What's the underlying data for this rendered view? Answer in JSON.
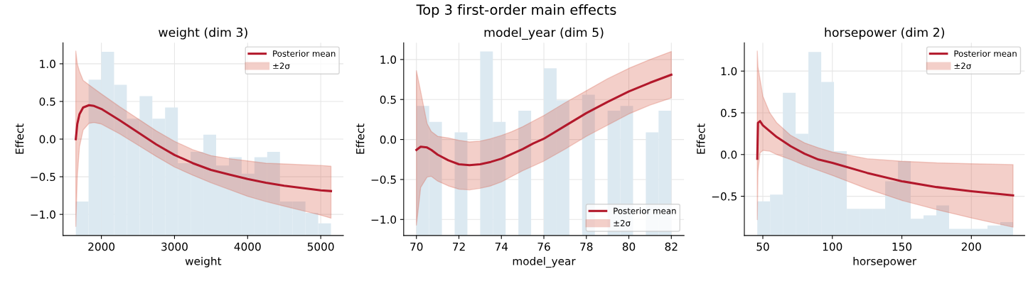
{
  "chart_data": [
    {
      "type": "line",
      "title": "weight (dim 3)",
      "xlabel": "weight",
      "ylabel": "Effect",
      "annotations": [
        "±2σ",
        "Top 3 first-order main effects"
      ],
      "xlim": [
        1475,
        5310
      ],
      "ylim": [
        -1.28,
        1.28
      ],
      "xticks": [
        2000,
        3000,
        4000,
        5000
      ],
      "yticks": [
        {
          "value": -1.0,
          "label": "−1.0"
        },
        {
          "value": -0.5,
          "label": "−0.5"
        },
        {
          "value": 0.0,
          "label": "0.0"
        },
        {
          "value": 0.5,
          "label": "0.5"
        },
        {
          "value": 1.0,
          "label": "1.0"
        }
      ],
      "grid": true,
      "legend": "top right",
      "series": [
        {
          "type": "bar",
          "color": "#dce9f1",
          "x": [
            1737.25,
            1911.75,
            2086.25,
            2260.75,
            2435.25,
            2609.75,
            2784.25,
            2958.75,
            3133.25,
            3307.75,
            3482.25,
            3656.75,
            3831.25,
            4005.75,
            4180.25,
            4354.75,
            4529.25,
            4703.75,
            4878.25,
            5052.75
          ],
          "base": [
            -1.28,
            -1.28,
            -1.28,
            -1.28,
            -1.28,
            -1.28,
            -1.28,
            -1.28,
            -1.28,
            -1.28,
            -1.28,
            -1.28,
            -1.28,
            -1.28,
            -1.28,
            -1.28,
            -1.28,
            -1.28,
            -1.28,
            -1.28
          ],
          "values": [
            0.45,
            2.07,
            2.44,
            2.0,
            1.55,
            1.85,
            1.55,
            1.7,
            0.96,
            1.11,
            1.34,
            0.93,
            1.04,
            0.82,
            1.04,
            1.11,
            0.45,
            0.45,
            0.3,
            0.16
          ]
        },
        {
          "name": "Posterior mean",
          "color": "#b2182b",
          "x": [
            1650,
            1670,
            1700,
            1750,
            1830,
            1900,
            2000,
            2250,
            2500,
            2750,
            3000,
            3250,
            3500,
            3750,
            4000,
            4250,
            4500,
            4750,
            5000,
            5140
          ],
          "values": [
            0.0,
            0.2,
            0.33,
            0.42,
            0.45,
            0.44,
            0.4,
            0.25,
            0.09,
            -0.07,
            -0.21,
            -0.32,
            -0.41,
            -0.47,
            -0.53,
            -0.58,
            -0.62,
            -0.65,
            -0.68,
            -0.69
          ],
          "lower": [
            -1.16,
            -0.5,
            -0.1,
            0.12,
            0.21,
            0.22,
            0.2,
            0.07,
            -0.08,
            -0.23,
            -0.37,
            -0.48,
            -0.58,
            -0.67,
            -0.76,
            -0.83,
            -0.89,
            -0.95,
            -1.01,
            -1.05
          ],
          "upper": [
            1.17,
            1.0,
            0.9,
            0.78,
            0.72,
            0.67,
            0.6,
            0.43,
            0.27,
            0.11,
            -0.03,
            -0.14,
            -0.22,
            -0.26,
            -0.29,
            -0.32,
            -0.33,
            -0.34,
            -0.35,
            -0.36
          ]
        }
      ]
    },
    {
      "type": "line",
      "title": "model_year (dim 5)",
      "xlabel": "model_year",
      "ylabel": "Effect",
      "annotations": [
        "±2σ"
      ],
      "xlim": [
        69.4,
        82.6
      ],
      "ylim": [
        -1.2,
        1.21
      ],
      "xticks": [
        70,
        72,
        74,
        76,
        78,
        80,
        82
      ],
      "yticks": [
        {
          "value": -1.0,
          "label": "−1.0"
        },
        {
          "value": -0.5,
          "label": "−0.5"
        },
        {
          "value": 0.0,
          "label": "0.0"
        },
        {
          "value": 0.5,
          "label": "0.5"
        },
        {
          "value": 1.0,
          "label": "1.0"
        }
      ],
      "grid": true,
      "legend": "bottom right",
      "series": [
        {
          "type": "bar",
          "color": "#dce9f1",
          "x": [
            70.3,
            70.9,
            71.5,
            72.1,
            72.7,
            73.3,
            73.9,
            74.5,
            75.1,
            75.7,
            76.3,
            76.9,
            77.5,
            78.1,
            78.7,
            79.3,
            79.9,
            80.5,
            81.1,
            81.7
          ],
          "base": [
            -1.2,
            -1.2,
            null,
            -1.2,
            null,
            -1.2,
            -1.2,
            null,
            -1.2,
            null,
            -1.2,
            -1.2,
            null,
            -1.2,
            null,
            -1.2,
            -1.2,
            null,
            -1.2,
            -1.2
          ],
          "values": [
            1.62,
            1.42,
            null,
            1.29,
            null,
            2.3,
            1.42,
            null,
            1.56,
            null,
            2.09,
            1.69,
            null,
            1.76,
            null,
            1.56,
            1.62,
            null,
            1.29,
            1.56
          ]
        },
        {
          "name": "Posterior mean",
          "color": "#b2182b",
          "x": [
            70,
            70.2,
            70.5,
            70.7,
            71,
            71.5,
            72,
            72.5,
            73,
            73.5,
            74,
            74.5,
            75,
            75.5,
            76,
            77,
            78,
            79,
            80,
            81,
            82
          ],
          "values": [
            -0.13,
            -0.09,
            -0.1,
            -0.13,
            -0.19,
            -0.26,
            -0.31,
            -0.32,
            -0.31,
            -0.28,
            -0.24,
            -0.18,
            -0.12,
            -0.05,
            0.01,
            0.17,
            0.33,
            0.47,
            0.6,
            0.71,
            0.81
          ],
          "lower": [
            -1.07,
            -0.6,
            -0.47,
            -0.46,
            -0.52,
            -0.58,
            -0.62,
            -0.63,
            -0.61,
            -0.58,
            -0.53,
            -0.46,
            -0.39,
            -0.33,
            -0.27,
            -0.12,
            0.04,
            0.18,
            0.32,
            0.43,
            0.52
          ],
          "upper": [
            0.86,
            0.6,
            0.2,
            0.1,
            0.04,
            0.02,
            -0.01,
            -0.03,
            -0.02,
            0.01,
            0.05,
            0.1,
            0.16,
            0.23,
            0.3,
            0.46,
            0.61,
            0.76,
            0.89,
            1.0,
            1.1
          ]
        }
      ]
    },
    {
      "type": "line",
      "title": "horsepower (dim 2)",
      "xlabel": "horsepower",
      "ylabel": "Effect",
      "annotations": [
        "±2σ"
      ],
      "xlim": [
        36.7,
        238.4
      ],
      "ylim": [
        -0.97,
        1.34
      ],
      "xticks": [
        50,
        100,
        150,
        200
      ],
      "yticks": [
        {
          "value": -0.5,
          "label": "−0.5"
        },
        {
          "value": 0.0,
          "label": "0.0"
        },
        {
          "value": 0.5,
          "label": "0.5"
        },
        {
          "value": 1.0,
          "label": "1.0"
        }
      ],
      "grid": true,
      "legend": "top right",
      "series": [
        {
          "type": "bar",
          "color": "#dce9f1",
          "x": [
            50.6,
            59.8,
            69.0,
            78.2,
            87.4,
            96.6,
            105.8,
            115.0,
            124.2,
            133.4,
            142.6,
            151.8,
            161.0,
            170.2,
            179.4,
            188.6,
            197.8,
            207.0,
            216.2,
            225.4
          ],
          "base": [
            -0.97,
            -0.97,
            -0.97,
            -0.97,
            -0.97,
            -0.97,
            -0.97,
            -0.97,
            -0.97,
            -0.97,
            -0.97,
            -0.97,
            -0.97,
            -0.97,
            -0.97,
            -0.97,
            -0.97,
            -0.97,
            -0.97,
            -0.97
          ],
          "values": [
            0.41,
            0.49,
            1.71,
            1.22,
            2.2,
            1.84,
            1.01,
            0.32,
            0.32,
            0.32,
            0.65,
            0.89,
            0.2,
            0.24,
            0.36,
            0.08,
            0.08,
            0.08,
            0.12,
            0.16
          ]
        },
        {
          "name": "Posterior mean",
          "color": "#b2182b",
          "x": [
            46,
            46.5,
            48,
            50,
            55,
            60,
            70,
            80,
            90,
            100,
            125,
            150,
            175,
            200,
            230
          ],
          "values": [
            -0.05,
            0.38,
            0.4,
            0.35,
            0.28,
            0.21,
            0.1,
            0.01,
            -0.06,
            -0.1,
            -0.22,
            -0.32,
            -0.39,
            -0.44,
            -0.49
          ],
          "lower": [
            -0.78,
            -0.2,
            0.02,
            0.05,
            0.04,
            0.0,
            -0.06,
            -0.13,
            -0.19,
            -0.25,
            -0.41,
            -0.55,
            -0.66,
            -0.76,
            -0.87
          ],
          "upper": [
            1.24,
            1.05,
            0.9,
            0.7,
            0.5,
            0.38,
            0.23,
            0.14,
            0.08,
            0.03,
            -0.05,
            -0.08,
            -0.1,
            -0.11,
            -0.12
          ]
        }
      ]
    }
  ]
}
